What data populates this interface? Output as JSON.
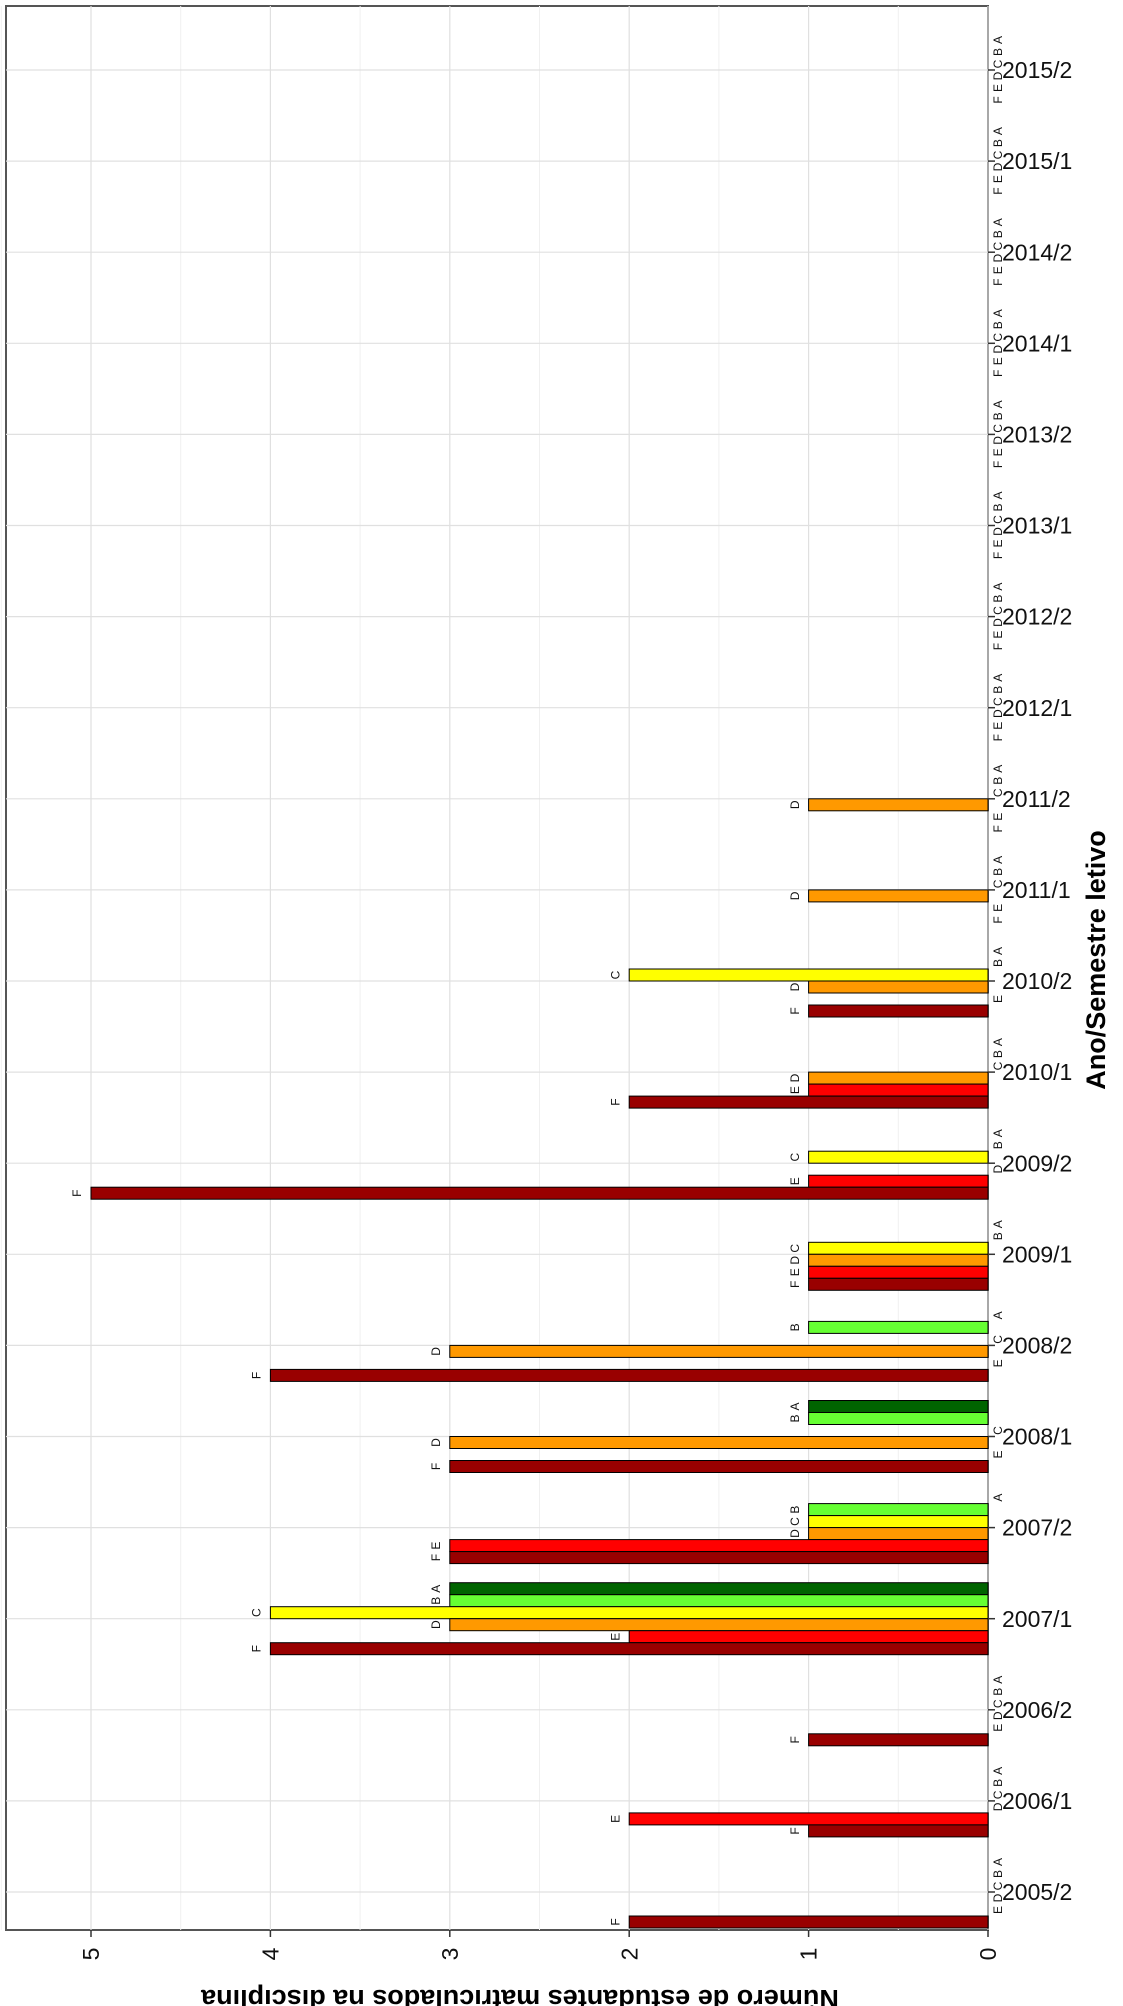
{
  "chart_data": {
    "type": "bar",
    "orientation": "horizontal, rotated view",
    "xlabel": "Ano/Semestre letivo",
    "ylabel": "Número de estudantes matriculados na disciplina",
    "ylim": [
      0,
      5.5
    ],
    "yticks": [
      0,
      1,
      2,
      3,
      4,
      5
    ],
    "grid": true,
    "categories": [
      "2005/2",
      "2006/1",
      "2006/2",
      "2007/1",
      "2007/2",
      "2008/1",
      "2008/2",
      "2009/1",
      "2009/2",
      "2010/1",
      "2010/2",
      "2011/1",
      "2011/2",
      "2012/1",
      "2012/2",
      "2013/1",
      "2013/2",
      "2014/1",
      "2014/2",
      "2015/1",
      "2015/2"
    ],
    "series": [
      {
        "name": "A",
        "color": "#006400",
        "values": [
          0,
          0,
          0,
          3,
          0,
          1,
          0,
          0,
          0,
          0,
          0,
          0,
          0,
          0,
          0,
          0,
          0,
          0,
          0,
          0,
          0
        ]
      },
      {
        "name": "B",
        "color": "#66ff33",
        "values": [
          0,
          0,
          0,
          3,
          1,
          1,
          1,
          0,
          0,
          0,
          0,
          0,
          0,
          0,
          0,
          0,
          0,
          0,
          0,
          0,
          0
        ]
      },
      {
        "name": "C",
        "color": "#ffff00",
        "values": [
          0,
          0,
          0,
          4,
          1,
          0,
          0,
          1,
          1,
          0,
          2,
          0,
          0,
          0,
          0,
          0,
          0,
          0,
          0,
          0,
          0
        ]
      },
      {
        "name": "D",
        "color": "#ff9900",
        "values": [
          0,
          0,
          0,
          3,
          1,
          3,
          3,
          1,
          0,
          1,
          1,
          1,
          1,
          0,
          0,
          0,
          0,
          0,
          0,
          0,
          0
        ]
      },
      {
        "name": "E",
        "color": "#ff0000",
        "values": [
          0,
          2,
          0,
          2,
          3,
          0,
          0,
          1,
          1,
          1,
          0,
          0,
          0,
          0,
          0,
          0,
          0,
          0,
          0,
          0,
          0
        ]
      },
      {
        "name": "F",
        "color": "#990000",
        "values": [
          2,
          1,
          1,
          4,
          3,
          3,
          4,
          1,
          5,
          2,
          1,
          0,
          0,
          0,
          0,
          0,
          0,
          0,
          0,
          0,
          0
        ]
      }
    ]
  }
}
